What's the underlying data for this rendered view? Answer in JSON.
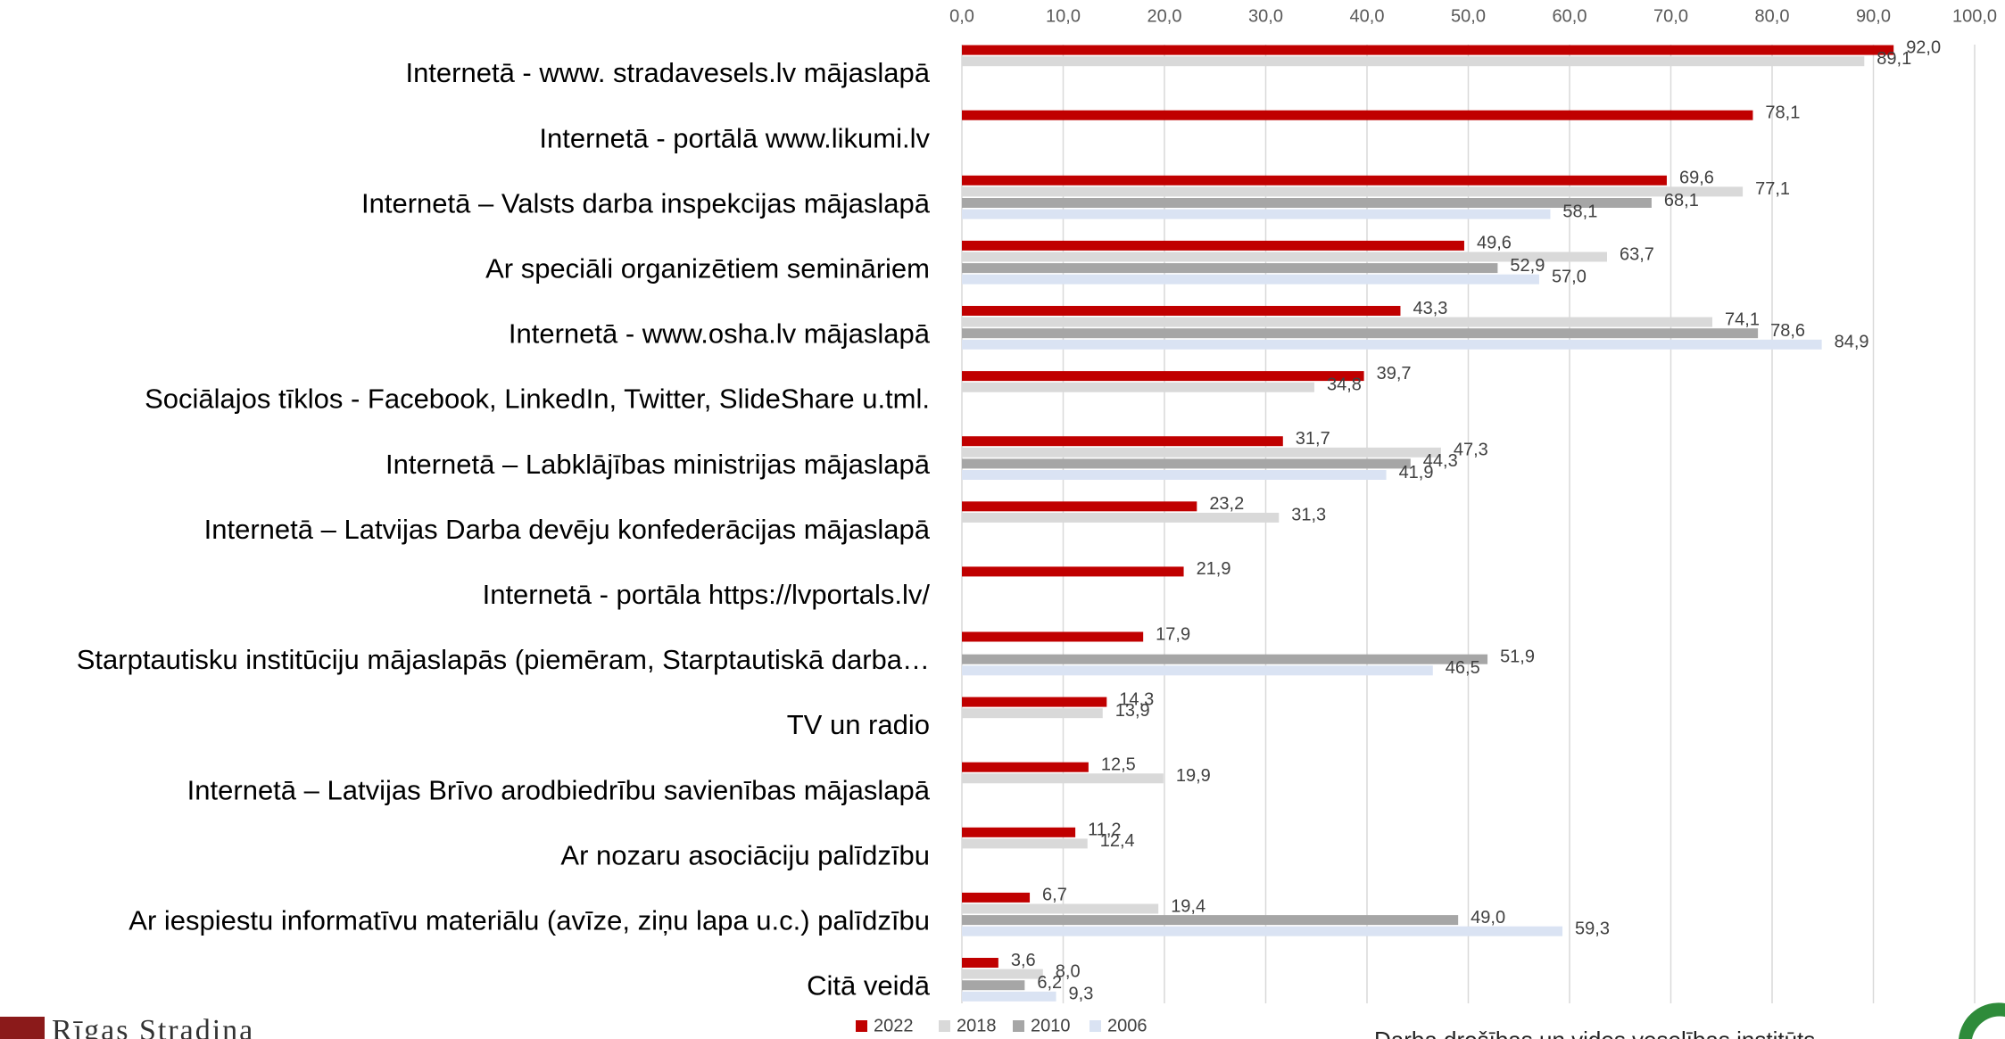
{
  "chart_data": {
    "type": "bar",
    "orientation": "horizontal",
    "categories": [
      "Internetā - www. stradavesels.lv mājaslapā",
      "Internetā - portālā www.likumi.lv",
      "Internetā – Valsts darba inspekcijas mājaslapā",
      "Ar speciāli organizētiem semināriem",
      "Internetā - www.osha.lv mājaslapā",
      "Sociālajos tīklos - Facebook, LinkedIn, Twitter, SlideShare u.tml.",
      "Internetā – Labklājības ministrijas mājaslapā",
      "Internetā – Latvijas Darba devēju konfederācijas mājaslapā",
      "Internetā - portāla https://lvportals.lv/",
      "Starptautisku institūciju mājaslapās (piemēram, Starptautiskā darba…",
      "TV un radio",
      "Internetā – Latvijas Brīvo arodbiedrību savienības mājaslapā",
      "Ar nozaru asociāciju palīdzību",
      "Ar iespiestu informatīvu materiālu (avīze, ziņu lapa u.c.) palīdzību",
      "Citā veidā"
    ],
    "series": [
      {
        "name": "2022",
        "color": "#c00000",
        "values": [
          92.0,
          78.1,
          69.6,
          49.6,
          43.3,
          39.7,
          31.7,
          23.2,
          21.9,
          17.9,
          14.3,
          12.5,
          11.2,
          6.7,
          3.6
        ],
        "value_labels": [
          "92,0",
          "78,1",
          "69,6",
          "49,6",
          "43,3",
          "39,7",
          "31,7",
          "23,2",
          "21,9",
          "17,9",
          "14,3",
          "12,5",
          "11,2",
          "6,7",
          "3,6"
        ]
      },
      {
        "name": "2018",
        "color": "#d9d9d9",
        "values": [
          89.1,
          null,
          77.1,
          63.7,
          74.1,
          34.8,
          47.3,
          31.3,
          null,
          null,
          13.9,
          19.9,
          12.4,
          19.4,
          8.0
        ],
        "value_labels": [
          "89,1",
          null,
          "77,1",
          "63,7",
          "74,1",
          "34,8",
          "47,3",
          "31,3",
          null,
          null,
          "13,9",
          "19,9",
          "12,4",
          "19,4",
          "8,0"
        ]
      },
      {
        "name": "2010",
        "color": "#a6a6a6",
        "values": [
          null,
          null,
          68.1,
          52.9,
          78.6,
          null,
          44.3,
          null,
          null,
          51.9,
          null,
          null,
          null,
          49.0,
          6.2
        ],
        "value_labels": [
          null,
          null,
          "68,1",
          "52,9",
          "78,6",
          null,
          "44,3",
          null,
          null,
          "51,9",
          null,
          null,
          null,
          "49,0",
          "6,2"
        ]
      },
      {
        "name": "2006",
        "color": "#dae3f3",
        "values": [
          null,
          null,
          58.1,
          57.0,
          84.9,
          null,
          41.9,
          null,
          null,
          46.5,
          null,
          null,
          null,
          59.3,
          9.3
        ],
        "value_labels": [
          null,
          null,
          "58,1",
          "57,0",
          "84,9",
          null,
          "41,9",
          null,
          null,
          "46,5",
          null,
          null,
          null,
          "59,3",
          "9,3"
        ]
      }
    ],
    "xlim": [
      0,
      100
    ],
    "xticks": [
      {
        "value": 0,
        "label": "0,0"
      },
      {
        "value": 10,
        "label": "10,0"
      },
      {
        "value": 20,
        "label": "20,0"
      },
      {
        "value": 30,
        "label": "30,0"
      },
      {
        "value": 40,
        "label": "40,0"
      },
      {
        "value": 50,
        "label": "50,0"
      },
      {
        "value": 60,
        "label": "60,0"
      },
      {
        "value": 70,
        "label": "70,0"
      },
      {
        "value": 80,
        "label": "80,0"
      },
      {
        "value": 90,
        "label": "90,0"
      },
      {
        "value": 100,
        "label": "100,0"
      }
    ],
    "grid": true,
    "legend": "bottom"
  },
  "footer": {
    "left": "Rīgas Stradiņa",
    "right": "Darba drošības un vides veselības institūts"
  }
}
